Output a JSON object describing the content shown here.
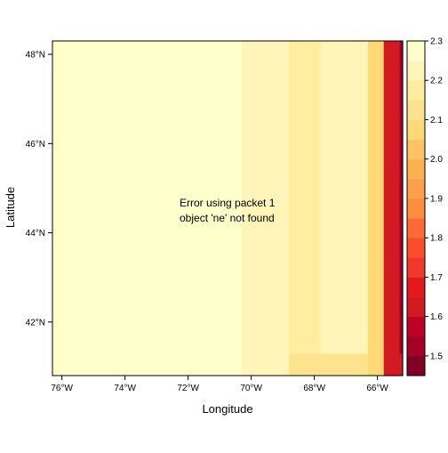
{
  "chart_data": {
    "type": "heatmap",
    "xlabel": "Longitude",
    "ylabel": "Latitude",
    "xlim": [
      -76.3,
      -65.2
    ],
    "ylim": [
      40.8,
      48.3
    ],
    "x_ticks": [
      {
        "value": -76,
        "label": "76°W"
      },
      {
        "value": -74,
        "label": "74°W"
      },
      {
        "value": -72,
        "label": "72°W"
      },
      {
        "value": -70,
        "label": "70°W"
      },
      {
        "value": -68,
        "label": "68°W"
      },
      {
        "value": -66,
        "label": "66°W"
      }
    ],
    "y_ticks": [
      {
        "value": 42,
        "label": "42°N"
      },
      {
        "value": 44,
        "label": "44°N"
      },
      {
        "value": 46,
        "label": "46°N"
      },
      {
        "value": 48,
        "label": "48°N"
      }
    ],
    "grid": false,
    "legend_placement": "right",
    "message_lines": [
      "Error using packet 1",
      "object 'ne' not found"
    ],
    "colorbar": {
      "labels": [
        {
          "value": 1.5,
          "label": "1.5"
        },
        {
          "value": 1.6,
          "label": "1.6"
        },
        {
          "value": 1.7,
          "label": "1.7"
        },
        {
          "value": 1.8,
          "label": "1.8"
        },
        {
          "value": 1.9,
          "label": "1.9"
        },
        {
          "value": 2.0,
          "label": "2.0"
        },
        {
          "value": 2.1,
          "label": "2.1"
        },
        {
          "value": 2.2,
          "label": "2.2"
        },
        {
          "value": 2.3,
          "label": "2.3"
        }
      ],
      "min": 1.45,
      "step": 0.05,
      "colors": [
        "#800026",
        "#a50026",
        "#bd0026",
        "#d31a23",
        "#e31a1c",
        "#f0392a",
        "#fc4e2a",
        "#fd6a36",
        "#fd8d3c",
        "#fea14a",
        "#feb24c",
        "#fec363",
        "#fed976",
        "#fee38e",
        "#ffeda0",
        "#fff5b8",
        "#ffffcc"
      ]
    },
    "cell_grid": {
      "lon_start": -76.3,
      "lat_start": 40.8,
      "d_lon": 0.5,
      "d_lat": 0.5,
      "values": [
        [
          2.27,
          2.27,
          2.27,
          2.27,
          2.27,
          2.27,
          2.27,
          2.27,
          2.27,
          2.27,
          2.27,
          2.27,
          2.23,
          2.23,
          2.23,
          2.13,
          2.13,
          2.13,
          2.13,
          2.13,
          2.07,
          1.62,
          1.62,
          1.62,
          1.62,
          1.62,
          1.62,
          1.62,
          1.62,
          1.62,
          1.62,
          1.62
        ],
        [
          2.27,
          2.27,
          2.27,
          2.27,
          2.27,
          2.27,
          2.27,
          2.27,
          2.27,
          2.27,
          2.27,
          2.27,
          2.23,
          2.23,
          2.23,
          2.18,
          2.18,
          2.23,
          2.23,
          2.23,
          2.07,
          1.62,
          1.52,
          1.52,
          1.52,
          1.52,
          1.52,
          1.52,
          1.52,
          1.62,
          1.62,
          1.62
        ],
        [
          2.27,
          2.27,
          2.27,
          2.27,
          2.27,
          2.27,
          2.27,
          2.27,
          2.27,
          2.27,
          2.27,
          2.27,
          2.23,
          2.23,
          2.23,
          2.18,
          2.18,
          2.23,
          2.23,
          2.23,
          2.07,
          1.62,
          1.52,
          1.52,
          1.52,
          1.52,
          1.52,
          1.52,
          1.52,
          1.62,
          1.62,
          1.62
        ],
        [
          2.27,
          2.27,
          2.27,
          2.27,
          2.27,
          2.27,
          2.27,
          2.27,
          2.27,
          2.27,
          2.27,
          2.27,
          2.23,
          2.23,
          2.23,
          2.18,
          2.18,
          2.23,
          2.23,
          2.23,
          2.07,
          1.62,
          1.52,
          1.52,
          1.52,
          1.52,
          1.52,
          1.52,
          1.52,
          1.62,
          1.62,
          1.62
        ],
        [
          2.27,
          2.27,
          2.27,
          2.27,
          2.27,
          2.27,
          2.27,
          2.27,
          2.27,
          2.27,
          2.27,
          2.27,
          2.23,
          2.23,
          2.23,
          2.18,
          2.18,
          2.23,
          2.23,
          2.23,
          2.07,
          1.62,
          1.52,
          1.52,
          1.52,
          1.52,
          1.52,
          1.52,
          1.52,
          1.62,
          1.62,
          1.62
        ],
        [
          2.27,
          2.27,
          2.27,
          2.27,
          2.27,
          2.27,
          2.27,
          2.27,
          2.27,
          2.27,
          2.27,
          2.27,
          2.23,
          2.23,
          2.23,
          2.18,
          2.18,
          2.23,
          2.23,
          2.23,
          2.07,
          1.62,
          1.52,
          1.52,
          1.52,
          1.52,
          1.52,
          1.52,
          1.52,
          1.62,
          1.62,
          1.62
        ],
        [
          2.27,
          2.27,
          2.27,
          2.27,
          2.27,
          2.27,
          2.27,
          2.27,
          2.27,
          2.27,
          2.27,
          2.27,
          2.23,
          2.23,
          2.23,
          2.18,
          2.18,
          2.23,
          2.23,
          2.23,
          2.07,
          1.62,
          1.52,
          1.52,
          1.52,
          1.52,
          1.52,
          1.52,
          1.52,
          1.62,
          1.62,
          1.62
        ],
        [
          2.27,
          2.27,
          2.27,
          2.27,
          2.27,
          2.27,
          2.27,
          2.27,
          2.27,
          2.27,
          2.27,
          2.27,
          2.23,
          2.23,
          2.23,
          2.18,
          2.18,
          2.23,
          2.23,
          2.23,
          2.07,
          1.62,
          1.52,
          1.52,
          1.52,
          1.52,
          1.52,
          1.52,
          1.52,
          1.62,
          1.62,
          1.62
        ],
        [
          2.27,
          2.27,
          2.27,
          2.27,
          2.27,
          2.27,
          2.27,
          2.27,
          2.27,
          2.27,
          2.27,
          2.27,
          2.23,
          2.23,
          2.23,
          2.18,
          2.18,
          2.23,
          2.23,
          2.23,
          2.07,
          1.62,
          1.52,
          1.52,
          1.52,
          1.52,
          1.52,
          1.52,
          1.52,
          1.62,
          1.62,
          1.62
        ],
        [
          2.27,
          2.27,
          2.27,
          2.27,
          2.27,
          2.27,
          2.27,
          2.27,
          2.27,
          2.27,
          2.27,
          2.27,
          2.23,
          2.23,
          2.23,
          2.18,
          2.18,
          2.23,
          2.23,
          2.23,
          2.07,
          1.62,
          1.52,
          1.52,
          1.52,
          1.52,
          1.52,
          1.52,
          1.52,
          1.62,
          1.62,
          1.62
        ],
        [
          2.27,
          2.27,
          2.27,
          2.27,
          2.27,
          2.27,
          2.27,
          2.27,
          2.27,
          2.27,
          2.27,
          2.27,
          2.23,
          2.23,
          2.23,
          2.18,
          2.18,
          2.23,
          2.23,
          2.23,
          2.07,
          1.62,
          1.52,
          1.52,
          1.52,
          1.52,
          1.52,
          1.52,
          1.52,
          1.62,
          1.62,
          1.62
        ],
        [
          2.27,
          2.27,
          2.27,
          2.27,
          2.27,
          2.27,
          2.27,
          2.27,
          2.27,
          2.27,
          2.27,
          2.27,
          2.23,
          2.23,
          2.23,
          2.18,
          2.18,
          2.23,
          2.23,
          2.23,
          2.07,
          1.62,
          1.52,
          1.52,
          1.52,
          1.52,
          1.52,
          1.52,
          1.52,
          1.62,
          1.62,
          1.62
        ],
        [
          2.27,
          2.27,
          2.27,
          2.27,
          2.27,
          2.27,
          2.27,
          2.27,
          2.27,
          2.27,
          2.27,
          2.27,
          2.23,
          2.23,
          2.23,
          2.18,
          2.18,
          2.23,
          2.23,
          2.23,
          2.07,
          1.62,
          1.52,
          1.52,
          1.52,
          1.52,
          1.52,
          1.52,
          1.52,
          1.62,
          1.62,
          1.62
        ],
        [
          2.27,
          2.27,
          2.27,
          2.27,
          2.27,
          2.27,
          2.27,
          2.27,
          2.27,
          2.27,
          2.27,
          2.27,
          2.23,
          2.23,
          2.23,
          2.18,
          2.18,
          2.23,
          2.23,
          2.23,
          2.07,
          1.62,
          1.52,
          1.52,
          1.52,
          1.52,
          1.52,
          1.52,
          1.52,
          1.62,
          1.62,
          1.62
        ],
        [
          2.27,
          2.27,
          2.27,
          2.27,
          2.27,
          2.27,
          2.27,
          2.27,
          2.27,
          2.27,
          2.27,
          2.27,
          2.23,
          2.23,
          2.23,
          2.18,
          2.18,
          2.23,
          2.23,
          2.23,
          2.07,
          1.62,
          1.52,
          1.52,
          1.52,
          1.52,
          1.52,
          1.52,
          1.52,
          1.62,
          1.62,
          1.62
        ]
      ]
    }
  }
}
